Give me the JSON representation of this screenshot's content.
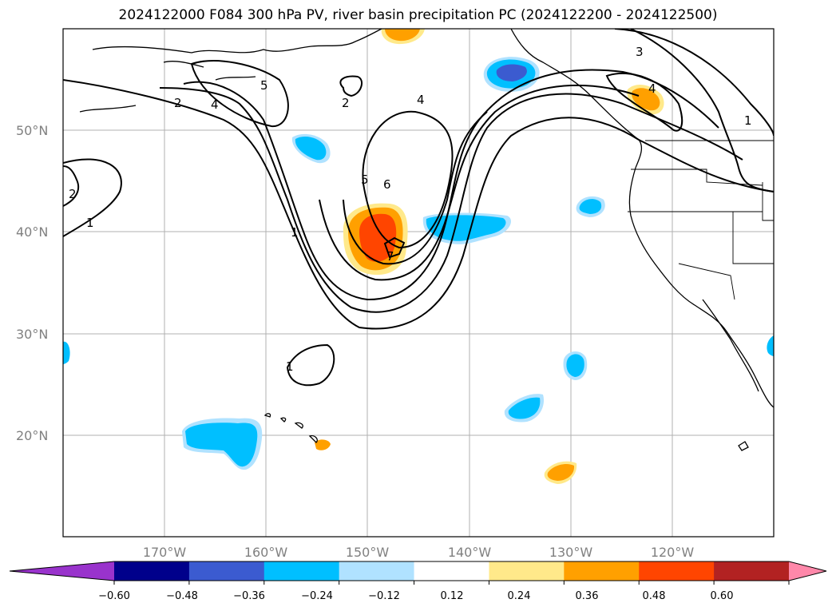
{
  "title": "2024122000 F084 300 hPa PV, river basin precipitation PC (2024122200 - 2024122500)",
  "map": {
    "projection": "lat-lon",
    "lon_range": [
      -180,
      -110
    ],
    "lat_range": [
      10,
      60
    ],
    "grid": true,
    "lat_labels": [
      "50°N",
      "40°N",
      "30°N",
      "20°N"
    ],
    "lon_labels": [
      "170°W",
      "160°W",
      "150°W",
      "140°W",
      "130°W",
      "120°W"
    ],
    "pv_contour_labels": [
      "2",
      "4",
      "5",
      "2",
      "4",
      "5",
      "6",
      "2",
      "1",
      "1",
      "1",
      "3",
      "4",
      "1",
      "7"
    ]
  },
  "colorbar": {
    "ticks": [
      "−0.60",
      "−0.48",
      "−0.36",
      "−0.24",
      "−0.12",
      "0.12",
      "0.24",
      "0.36",
      "0.48",
      "0.60"
    ],
    "colors": [
      "#9933cc",
      "#00008b",
      "#3b5bd0",
      "#00bfff",
      "#b0e2ff",
      "#ffffff",
      "#ffe98a",
      "#ffa000",
      "#ff4500",
      "#b22222",
      "#ff88aa"
    ],
    "extend": "both"
  }
}
